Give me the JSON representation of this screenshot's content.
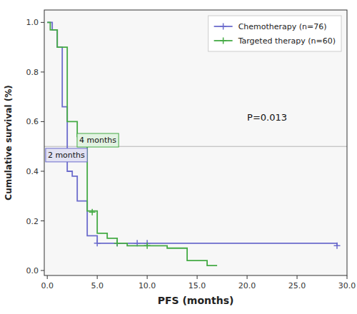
{
  "chart_data": {
    "type": "line",
    "xlabel": "PFS (months)",
    "ylabel": "Cumulative survival (%)",
    "series": [
      {
        "name": "Chemotherapy (n=76)",
        "color": "#6b6bcc",
        "x": [
          0,
          0.5,
          0.5,
          1.0,
          1.0,
          1.5,
          1.5,
          2.0,
          2.0,
          2.5,
          2.5,
          3.0,
          3.0,
          4.0,
          4.0,
          5.0,
          5.0,
          7.0,
          7.0,
          8.0,
          8.0,
          9.0,
          9.0,
          10.0,
          10.0,
          29.0,
          29.0
        ],
        "values": [
          1.0,
          1.0,
          0.97,
          0.97,
          0.9,
          0.9,
          0.66,
          0.66,
          0.4,
          0.4,
          0.38,
          0.38,
          0.28,
          0.28,
          0.14,
          0.14,
          0.11,
          0.11,
          0.11,
          0.11,
          0.11,
          0.11,
          0.11,
          0.11,
          0.11,
          0.11,
          0.1
        ],
        "censored_x": [
          5.0,
          7.0,
          9.0,
          10.0,
          29.0
        ],
        "censored_values": [
          0.11,
          0.11,
          0.11,
          0.11,
          0.1
        ]
      },
      {
        "name": "Targeted therapy (n=60)",
        "color": "#44aa44",
        "x": [
          0,
          0.3,
          0.3,
          1.0,
          1.0,
          2.0,
          2.0,
          3.0,
          3.0,
          4.0,
          4.0,
          5.0,
          5.0,
          6.0,
          6.0,
          7.0,
          7.0,
          8.0,
          8.0,
          10.0,
          10.0,
          12.0,
          12.0,
          14.0,
          14.0,
          16.0,
          16.0,
          17.0
        ],
        "values": [
          1.0,
          1.0,
          0.97,
          0.97,
          0.9,
          0.9,
          0.6,
          0.6,
          0.54,
          0.54,
          0.24,
          0.24,
          0.15,
          0.15,
          0.13,
          0.13,
          0.11,
          0.11,
          0.1,
          0.1,
          0.1,
          0.1,
          0.09,
          0.09,
          0.04,
          0.04,
          0.02,
          0.02
        ],
        "censored_x": [
          4.5,
          7.0,
          10.0
        ],
        "censored_values": [
          0.235,
          0.11,
          0.1
        ]
      }
    ],
    "median_line": 0.5,
    "annotations": [
      {
        "text": "2 months",
        "x": 0.05,
        "y": 0.455
      },
      {
        "text": "4 months",
        "x": 3.2,
        "y": 0.515
      },
      {
        "text": "P=0.013",
        "x": 22,
        "y": 0.615
      }
    ],
    "xlim": [
      -0.3,
      30
    ],
    "ylim": [
      -0.02,
      1.05
    ],
    "xticks": [
      {
        "value": 0,
        "label": "0.0"
      },
      {
        "value": 5,
        "label": "5.0"
      },
      {
        "value": 10,
        "label": "10.0"
      },
      {
        "value": 15,
        "label": "15.0"
      },
      {
        "value": 20,
        "label": "20.0"
      },
      {
        "value": 25,
        "label": "25.0"
      },
      {
        "value": 30,
        "label": "30.0"
      }
    ],
    "yticks": [
      {
        "value": 0.0,
        "label": "0.0"
      },
      0.2,
      0.4,
      0.6,
      0.8,
      {
        "value": 1.0,
        "label": "1.0"
      }
    ],
    "grid": false,
    "legend": "upper right"
  }
}
